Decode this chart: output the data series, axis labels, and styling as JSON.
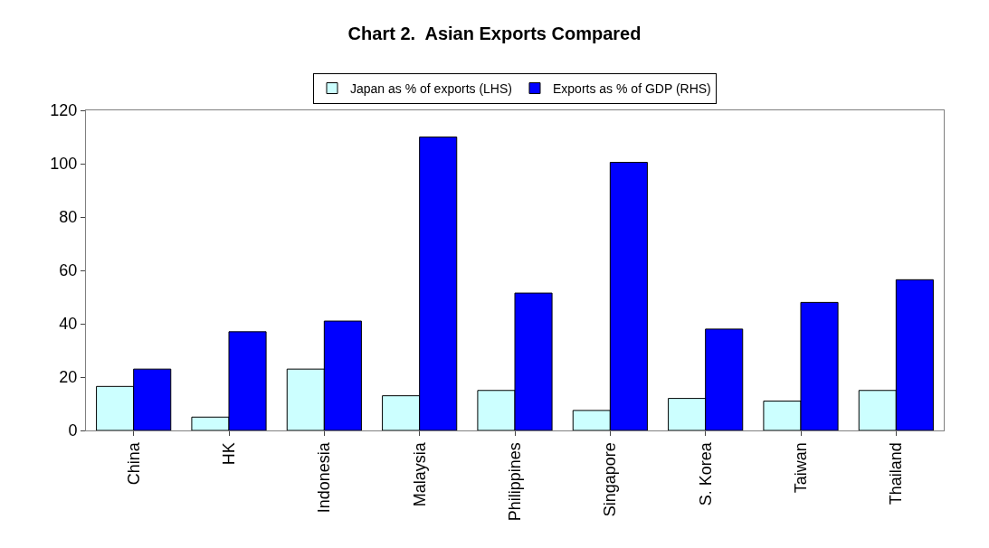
{
  "chart_data": {
    "type": "bar",
    "title": "Chart 2.  Asian Exports Compared",
    "categories": [
      "China",
      "HK",
      "Indonesia",
      "Malaysia",
      "Philippines",
      "Singapore",
      "S. Korea",
      "Taiwan",
      "Thailand"
    ],
    "series": [
      {
        "name": "Japan as % of exports (LHS)",
        "color": "#ccffff",
        "values": [
          16.5,
          5,
          23,
          13,
          15,
          7.5,
          12,
          11,
          15
        ]
      },
      {
        "name": "Exports as % of GDP (RHS)",
        "color": "#0000ff",
        "values": [
          23,
          37,
          41,
          110,
          51.5,
          100.5,
          38,
          48,
          56.5
        ]
      }
    ],
    "ylim": [
      0,
      120
    ],
    "yticks": [
      0,
      20,
      40,
      60,
      80,
      100,
      120
    ],
    "legend": "top"
  }
}
